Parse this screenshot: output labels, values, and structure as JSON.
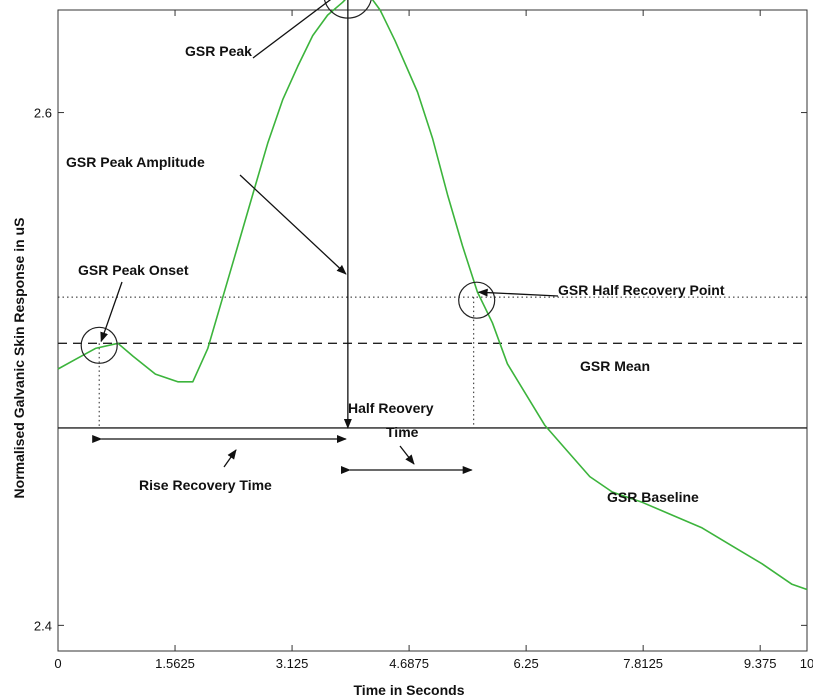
{
  "chart_data": {
    "type": "line",
    "title": "",
    "xlabel": "Time in Seconds",
    "ylabel": "Normalised Galvanic Skin Response in uS",
    "xlim": [
      0,
      10
    ],
    "ylim": [
      2.39,
      2.64
    ],
    "x_ticks": [
      "0",
      "1.5625",
      "3.125",
      "4.6875",
      "6.25",
      "7.8125",
      "9.375",
      "10"
    ],
    "x_tick_values": [
      0,
      1.5625,
      3.125,
      4.6875,
      6.25,
      7.8125,
      9.375,
      10
    ],
    "y_ticks": [
      "2.6",
      "2.4"
    ],
    "y_tick_values": [
      2.6,
      2.4
    ],
    "grid": false,
    "series": [
      {
        "color": "#3cb43c",
        "x": [
          0,
          0.25,
          0.5,
          0.8,
          1.0,
          1.3,
          1.6,
          1.8,
          2.0,
          2.2,
          2.4,
          2.6,
          2.8,
          3.0,
          3.2,
          3.4,
          3.6,
          3.8,
          3.9,
          4.0,
          4.05,
          4.15,
          4.3,
          4.5,
          4.8,
          5.0,
          5.2,
          5.4,
          5.6,
          5.8,
          6.0,
          6.25,
          6.5,
          6.8,
          7.1,
          7.4,
          7.8,
          8.2,
          8.6,
          9.0,
          9.4,
          9.8,
          10.0
        ],
        "values": [
          2.5,
          2.504,
          2.508,
          2.51,
          2.505,
          2.498,
          2.495,
          2.495,
          2.508,
          2.528,
          2.548,
          2.568,
          2.588,
          2.605,
          2.618,
          2.63,
          2.638,
          2.643,
          2.646,
          2.647,
          2.647,
          2.646,
          2.64,
          2.628,
          2.608,
          2.59,
          2.568,
          2.548,
          2.53,
          2.518,
          2.502,
          2.49,
          2.478,
          2.468,
          2.458,
          2.452,
          2.448,
          2.443,
          2.438,
          2.431,
          2.424,
          2.416,
          2.414
        ]
      }
    ],
    "reference_lines": {
      "half_recovery_y": 2.528,
      "mean_y": 2.51,
      "baseline_y": 2.477,
      "onset_x": 0.55,
      "peak_x": 3.87,
      "half_recovery_x": 5.55,
      "peak_y": 2.647,
      "onset_y": 2.51
    },
    "annotations": [
      {
        "text": "GSR Peak"
      },
      {
        "text": "GSR Peak Amplitude"
      },
      {
        "text": "GSR Peak Onset"
      },
      {
        "text": "GSR Half Recovery Point"
      },
      {
        "text": "GSR Mean"
      },
      {
        "text": "Half Reovery"
      },
      {
        "text": "Time"
      },
      {
        "text": "Rise Recovery Time"
      },
      {
        "text": "GSR Baseline"
      }
    ]
  }
}
